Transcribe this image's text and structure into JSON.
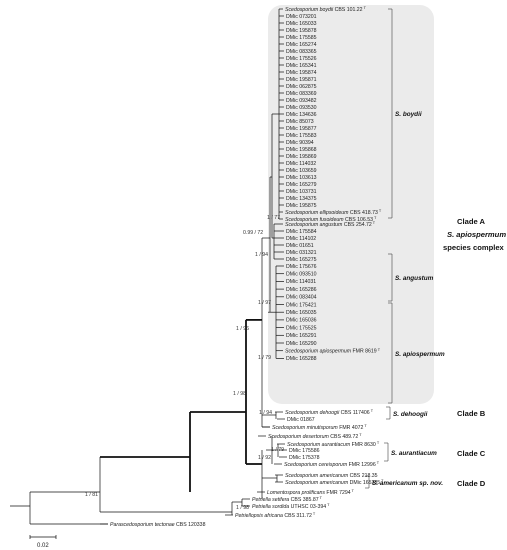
{
  "taxa": [
    {
      "name": "Scedosporium boydii",
      "code": "CBS 101.22",
      "sup": "T",
      "italic": true
    },
    {
      "name": "DMic 073201"
    },
    {
      "name": "DMic 165033"
    },
    {
      "name": "DMic 195878"
    },
    {
      "name": "DMic 175585"
    },
    {
      "name": "DMic 165274"
    },
    {
      "name": "DMic 083365"
    },
    {
      "name": "DMic 175526"
    },
    {
      "name": "DMic 165341"
    },
    {
      "name": "DMic 195874"
    },
    {
      "name": "DMic 195871"
    },
    {
      "name": "DMic 062875"
    },
    {
      "name": "DMic 083369"
    },
    {
      "name": "DMic 093482"
    },
    {
      "name": "DMic 093530"
    },
    {
      "name": "DMic 134636"
    },
    {
      "name": "DMic 85073"
    },
    {
      "name": "DMic 195877"
    },
    {
      "name": "DMic 175583"
    },
    {
      "name": "DMic 90394"
    },
    {
      "name": "DMic 195868"
    },
    {
      "name": "DMic 195869"
    },
    {
      "name": "DMic 114032"
    },
    {
      "name": "DMic 103659"
    },
    {
      "name": "DMic 103613"
    },
    {
      "name": "DMic 165279"
    },
    {
      "name": "DMic 103731"
    },
    {
      "name": "DMic 134375"
    },
    {
      "name": "DMic 195875"
    },
    {
      "name": "Scedosporium ellipsoideum",
      "code": "CBS 418.73",
      "sup": "T",
      "italic": true
    },
    {
      "name": "Scedosporium fusoideum",
      "code": "CBS 106.53",
      "sup": "T",
      "italic": true
    },
    {
      "name": "Scedosporium angustum",
      "code": "CBS 254.72",
      "sup": "T",
      "italic": true
    },
    {
      "name": "DMic 175584"
    },
    {
      "name": "DMic 114102"
    },
    {
      "name": "DMic 01651"
    },
    {
      "name": "DMic 031321"
    },
    {
      "name": "DMic 165275"
    },
    {
      "name": "DMic 175676"
    },
    {
      "name": "DMic 093510"
    },
    {
      "name": "DMic 114031"
    },
    {
      "name": "DMic 165286"
    },
    {
      "name": "DMic 083404"
    },
    {
      "name": "DMic 175421"
    },
    {
      "name": "DMic 165035"
    },
    {
      "name": "DMic 165036"
    },
    {
      "name": "DMic 175525"
    },
    {
      "name": "DMic 165291"
    },
    {
      "name": "DMic 165290"
    },
    {
      "name": "Scedosporium apiospermum",
      "code": "FMR 8619",
      "sup": "T",
      "italic": true
    },
    {
      "name": "DMic 165288"
    },
    {
      "name": "Scedosporium dehoogii",
      "code": "CBS 117406",
      "sup": "T",
      "italic": true
    },
    {
      "name": "DMic 01867"
    },
    {
      "name": "Scedosporium minutisporum",
      "code": "FMR 4072",
      "sup": "T",
      "italic": true
    },
    {
      "name": "Scedosporium desertorum",
      "code": "CBS 489.72",
      "sup": "T",
      "italic": true
    },
    {
      "name": "Scedosporium aurantiacum",
      "code": "FMR 8630",
      "sup": "T",
      "italic": true
    },
    {
      "name": "DMic 175586"
    },
    {
      "name": "DMic 175378"
    },
    {
      "name": "Scedosporium cereisporum",
      "code": "FMR 12996",
      "sup": "T",
      "italic": true
    },
    {
      "name": "Scedosporium americanum",
      "code": "CBS 218.35",
      "italic": true
    },
    {
      "name": "Scedosporium americanum",
      "code": "DMic 165285",
      "sup": "T",
      "italic": true
    },
    {
      "name": "Lomentospora prolificans",
      "code": "FMR 7294",
      "sup": "T",
      "italic": true
    },
    {
      "name": "Petriella setifera",
      "code": "CBS 385.87",
      "sup": "T",
      "italic": true
    },
    {
      "name": "Petriella sordida",
      "code": "UTHSC 03-394",
      "sup": "T",
      "italic": true
    },
    {
      "name": "Petriellopsis africana",
      "code": "CBS 311.72",
      "sup": "T",
      "italic": true
    },
    {
      "name": "Parascedosporium tectonae",
      "code": "CBS 120338",
      "italic": true
    }
  ],
  "support_values": [
    "1 / 77",
    "0.99 / 72",
    "1 / 94",
    "1 / 97",
    "1 / 96",
    "1 / 79",
    "1 / 98",
    "1 / 94",
    "1 / 79",
    "1 / 92",
    "1 / 81",
    "1 / 98"
  ],
  "clade_labels": {
    "boydii": "S. boydii",
    "angustum": "S. angustum",
    "apiospermum": "S. apiospermum",
    "dehoogii": "S. dehoogii",
    "aurantiacum": "S. aurantiacum",
    "americanum": "S. americanum sp. nov."
  },
  "clade_groups": {
    "a": "Clade A",
    "complex_name": "S. apiospermum",
    "complex_suffix": "species complex",
    "b": "Clade B",
    "c": "Clade C",
    "d": "Clade D"
  },
  "scale_bar": {
    "label": "0.02",
    "value": 0.02
  },
  "colors": {
    "complex_shade": "#ebebeb",
    "branch": "#111111"
  }
}
